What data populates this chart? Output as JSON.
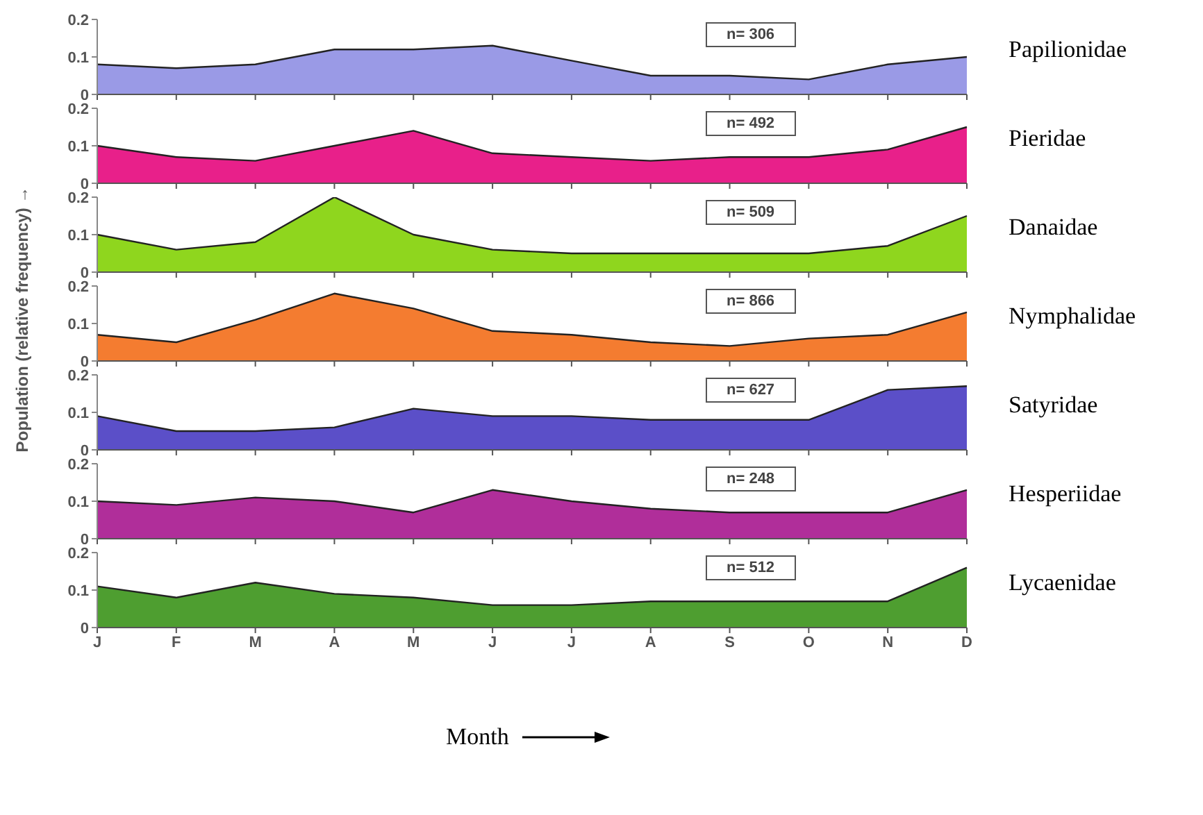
{
  "chart_data": [
    {
      "type": "area",
      "annotations": [
        "n= 306"
      ],
      "categories": [
        null,
        null,
        null,
        null,
        null,
        null,
        null,
        null,
        null,
        null,
        null,
        null
      ],
      "series": [
        {
          "name": "Papilionidae",
          "color": "#9a9ae6",
          "values": [
            0.08,
            0.07,
            0.08,
            0.12,
            0.12,
            0.13,
            0.09,
            0.05,
            0.05,
            0.04,
            0.08,
            0.1
          ]
        }
      ],
      "ylim": [
        0,
        0.2
      ],
      "yticks": [
        0,
        0.1,
        0.2
      ],
      "tick_labels": "y"
    },
    {
      "type": "area",
      "annotations": [
        "n= 492"
      ],
      "categories": [
        null,
        null,
        null,
        null,
        null,
        null,
        null,
        null,
        null,
        null,
        null,
        null
      ],
      "series": [
        {
          "name": "Pieridae",
          "color": "#e8208a",
          "values": [
            0.1,
            0.07,
            0.06,
            0.1,
            0.14,
            0.08,
            0.07,
            0.06,
            0.07,
            0.07,
            0.09,
            0.15
          ]
        }
      ],
      "ylim": [
        0,
        0.2
      ],
      "yticks": [
        0,
        0.1,
        0.2
      ],
      "tick_labels": "y"
    },
    {
      "type": "area",
      "annotations": [
        "n= 509"
      ],
      "categories": [
        null,
        null,
        null,
        null,
        null,
        null,
        null,
        null,
        null,
        null,
        null,
        null
      ],
      "series": [
        {
          "name": "Danaidae",
          "color": "#8fd61e",
          "values": [
            0.1,
            0.06,
            0.08,
            0.2,
            0.1,
            0.06,
            0.05,
            0.05,
            0.05,
            0.05,
            0.07,
            0.15
          ]
        }
      ],
      "ylim": [
        0,
        0.2
      ],
      "yticks": [
        0,
        0.1,
        0.2
      ],
      "tick_labels": "y"
    },
    {
      "type": "area",
      "ylabel": "Population (relative frequency) →",
      "annotations": [
        "n= 866"
      ],
      "categories": [
        null,
        null,
        null,
        null,
        null,
        null,
        null,
        null,
        null,
        null,
        null,
        null
      ],
      "series": [
        {
          "name": "Nymphalidae",
          "color": "#f47c30",
          "values": [
            0.07,
            0.05,
            0.11,
            0.18,
            0.14,
            0.08,
            0.07,
            0.05,
            0.04,
            0.06,
            0.07,
            0.13
          ]
        }
      ],
      "ylim": [
        0,
        0.2
      ],
      "yticks": [
        0,
        0.1,
        0.2
      ],
      "tick_labels": "y"
    },
    {
      "type": "area",
      "annotations": [
        "n= 627"
      ],
      "categories": [
        null,
        null,
        null,
        null,
        null,
        null,
        null,
        null,
        null,
        null,
        null,
        null
      ],
      "series": [
        {
          "name": "Satyridae",
          "color": "#5b4fc8",
          "values": [
            0.09,
            0.05,
            0.05,
            0.06,
            0.11,
            0.09,
            0.09,
            0.08,
            0.08,
            0.08,
            0.16,
            0.17
          ]
        }
      ],
      "ylim": [
        0,
        0.2
      ],
      "yticks": [
        0,
        0.1,
        0.2
      ],
      "tick_labels": "y"
    },
    {
      "type": "area",
      "annotations": [
        "n= 248"
      ],
      "categories": [
        null,
        null,
        null,
        null,
        null,
        null,
        null,
        null,
        null,
        null,
        null,
        null
      ],
      "series": [
        {
          "name": "Hesperiidae",
          "color": "#b02e9a",
          "values": [
            0.1,
            0.09,
            0.11,
            0.1,
            0.07,
            0.13,
            0.1,
            0.08,
            0.07,
            0.07,
            0.07,
            0.13
          ]
        }
      ],
      "ylim": [
        0,
        0.2
      ],
      "yticks": [
        0,
        0.1,
        0.2
      ],
      "tick_labels": "y"
    },
    {
      "type": "area",
      "xlabel": "Month",
      "annotations": [
        "n= 512"
      ],
      "categories": [
        "J",
        "F",
        "M",
        "A",
        "M",
        "J",
        "J",
        "A",
        "S",
        "O",
        "N",
        "D"
      ],
      "series": [
        {
          "name": "Lycaenidae",
          "color": "#4e9e30",
          "values": [
            0.11,
            0.08,
            0.12,
            0.09,
            0.08,
            0.06,
            0.06,
            0.07,
            0.07,
            0.07,
            0.07,
            0.16
          ]
        }
      ],
      "ylim": [
        0,
        0.2
      ],
      "yticks": [
        0,
        0.1,
        0.2
      ]
    }
  ]
}
